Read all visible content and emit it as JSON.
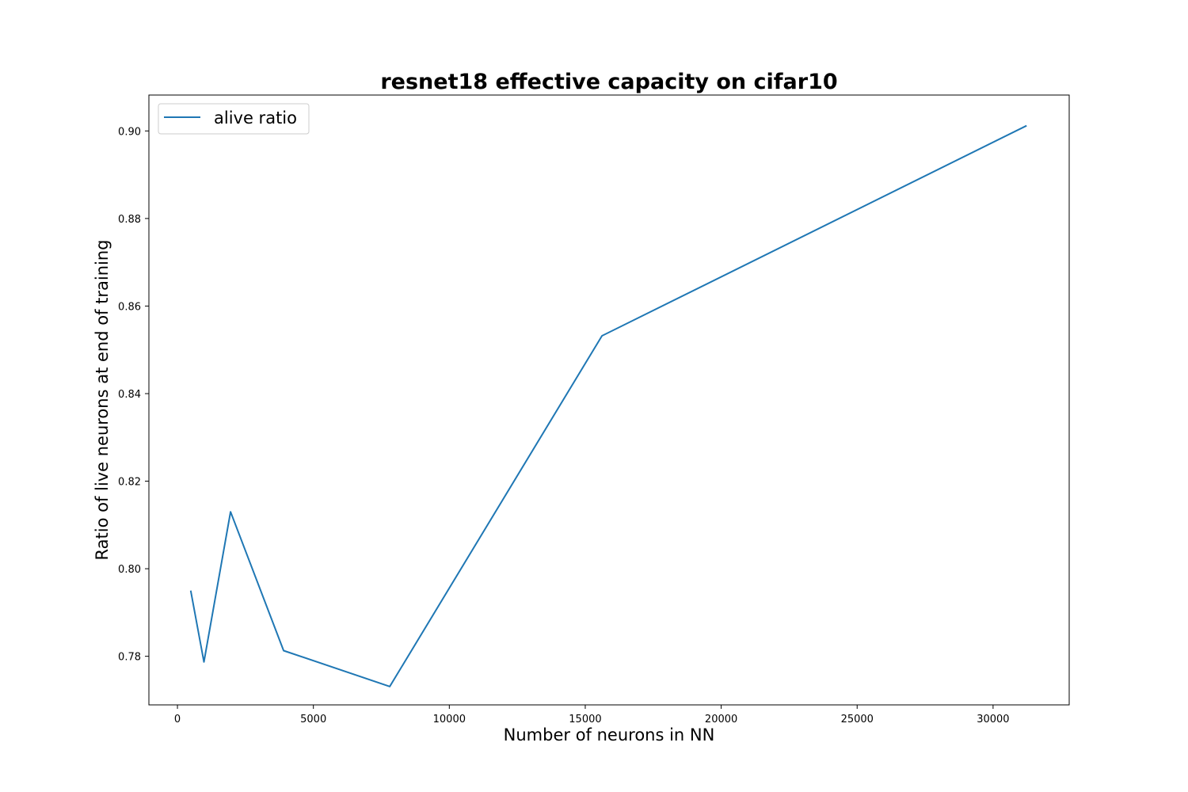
{
  "chart_data": {
    "type": "line",
    "title": "resnet18 effective capacity on cifar10",
    "xlabel": "Number of neurons in NN",
    "ylabel": "Ratio of live neurons at end of training",
    "xlim": [
      -1050,
      32800
    ],
    "ylim": [
      0.7689,
      0.9082
    ],
    "xticks": [
      0,
      5000,
      10000,
      15000,
      20000,
      25000,
      30000
    ],
    "xtick_labels": [
      "0",
      "5000",
      "10000",
      "15000",
      "20000",
      "25000",
      "30000"
    ],
    "yticks": [
      0.78,
      0.8,
      0.82,
      0.84,
      0.86,
      0.88,
      0.9
    ],
    "ytick_labels": [
      "0.78",
      "0.80",
      "0.82",
      "0.84",
      "0.86",
      "0.88",
      "0.90"
    ],
    "grid": false,
    "legend_position": "top-left",
    "series": [
      {
        "name": "alive ratio",
        "color": "#1f77b4",
        "x": [
          488,
          976,
          1952,
          3904,
          7808,
          15616,
          31232
        ],
        "y": [
          0.795,
          0.7787,
          0.813,
          0.7813,
          0.7731,
          0.8532,
          0.9012
        ]
      }
    ]
  }
}
